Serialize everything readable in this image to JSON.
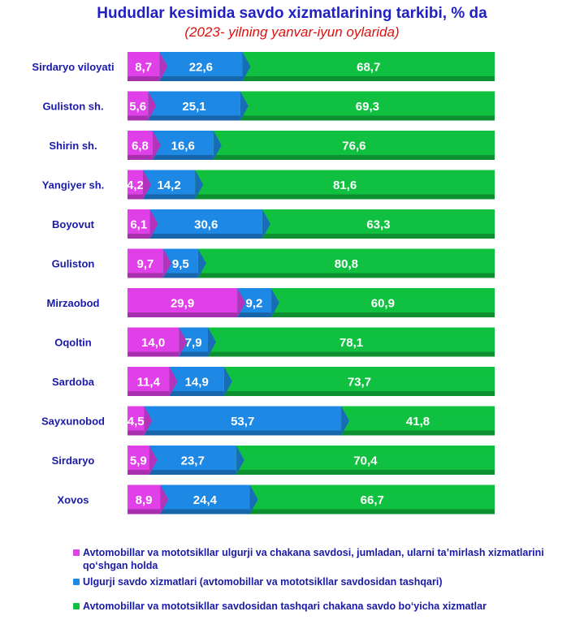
{
  "chart_data": {
    "type": "bar",
    "orientation": "horizontal",
    "stacked": true,
    "title": "Hududlar kesimida savdo xizmatlarining tarkibi, % da",
    "subtitle": "(2023- yilning yanvar-iyun oylarida)",
    "categories": [
      "Sirdaryo  viloyati",
      "Guliston  sh.",
      "Shirin   sh.",
      "Yangiyer   sh.",
      "Boyovut",
      "Guliston",
      "Mirzaobod",
      "Oqoltin",
      "Sardoba",
      "Sayxunobod",
      "Sirdaryo",
      "Xovos"
    ],
    "series": [
      {
        "name": "Avtomobillar  va mototsikllar ulgurji va chakana savdosi, jumladan, ularni ta’mirlash xizmatlarini  qo‘shgan holda",
        "color": "#e040e8",
        "values": [
          8.7,
          5.6,
          6.8,
          4.2,
          6.1,
          9.7,
          29.9,
          14.0,
          11.4,
          4.5,
          5.9,
          8.9
        ],
        "labels": [
          "8,7",
          "5,6",
          "6,8",
          "4,2",
          "6,1",
          "9,7",
          "29,9",
          "14,0",
          "11,4",
          "4,5",
          "5,9",
          "8,9"
        ]
      },
      {
        "name": "Ulgurji savdo  xizmatlari  (avtomobillar  va mototsikllar  savdosidan  tashqari)",
        "color": "#1e88e5",
        "values": [
          22.6,
          25.1,
          16.6,
          14.2,
          30.6,
          9.5,
          9.2,
          7.9,
          14.9,
          53.7,
          23.7,
          24.4
        ],
        "labels": [
          "22,6",
          "25,1",
          "16,6",
          "14,2",
          "30,6",
          "9,5",
          "9,2",
          "7,9",
          "14,9",
          "53,7",
          "23,7",
          "24,4"
        ]
      },
      {
        "name": "Avtomobillar  va mototsikllar  savdosidan  tashqari chakana savdo bo‘yicha  xizmatlar",
        "color": "#10c040",
        "values": [
          68.7,
          69.3,
          76.6,
          81.6,
          63.3,
          80.8,
          60.9,
          78.1,
          73.7,
          41.8,
          70.4,
          66.7
        ],
        "labels": [
          "68,7",
          "69,3",
          "76,6",
          "81,6",
          "63,3",
          "80,8",
          "60,9",
          "78,1",
          "73,7",
          "41,8",
          "70,4",
          "66,7"
        ]
      }
    ],
    "xlim": [
      0,
      100
    ],
    "grid": false,
    "legend_position": "bottom"
  }
}
